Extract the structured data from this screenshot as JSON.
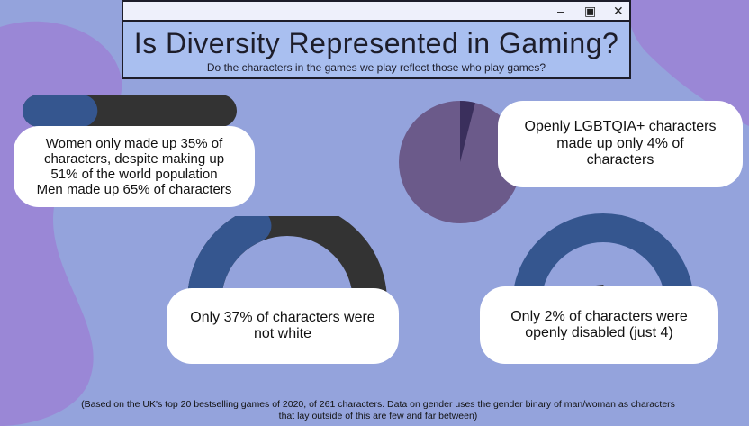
{
  "window": {
    "title": "Is Diversity Represented in Gaming?",
    "subtitle": "Do the characters in the games we play reflect those who play games?",
    "controls": [
      "minimize",
      "maximize",
      "close"
    ]
  },
  "stats": {
    "gender": {
      "lines": [
        "Women only made up 35% of",
        "characters, despite making up",
        "51% of the world population",
        "Men made up 65% of characters"
      ],
      "women_fraction": 0.35
    },
    "lgbtqia": {
      "lines": [
        "Openly LGBTQIA+ characters",
        "made up only 4% of",
        "characters"
      ],
      "fraction": 0.04
    },
    "non_white": {
      "lines": [
        "Only  37% of characters were",
        "not white"
      ],
      "fraction": 0.37
    },
    "disabled": {
      "lines": [
        "Only 2% of characters were",
        "openly disabled (just 4)"
      ],
      "fraction": 0.02
    }
  },
  "footnote": {
    "line1": "(Based on the UK's top 20 bestselling games of 2020, of 261 characters. Data on gender uses the gender binary of man/woman as characters",
    "line2": "that lay outside of this are few and far between)"
  },
  "colors": {
    "background": "#94a3dc",
    "blob": "#9a87d6",
    "blue": "#35568f",
    "dark": "#333333",
    "pie_main": "#6b5a8a",
    "pie_slice": "#3a2f5c",
    "tail": "#5b6a80"
  }
}
